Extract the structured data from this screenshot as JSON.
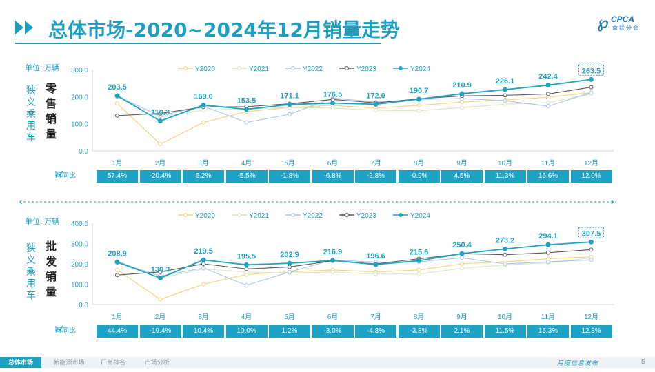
{
  "header": {
    "title": "总体市场-2020~2024年12月销量走势",
    "logo_text": "CPCA",
    "logo_sub": "乘联分会"
  },
  "colors": {
    "accent": "#1f9fbf",
    "Y2020": "#f7d27a",
    "Y2021": "#d9e6c6",
    "Y2022": "#a9c6e6",
    "Y2023": "#5a5a5a",
    "Y2024": "#1fa2c4"
  },
  "legend": [
    "Y2020",
    "Y2021",
    "Y2022",
    "Y2023",
    "Y2024"
  ],
  "months": [
    "1月",
    "2月",
    "3月",
    "4月",
    "5月",
    "6月",
    "7月",
    "8月",
    "9月",
    "10月",
    "11月",
    "12月"
  ],
  "mom_label": "月同比",
  "chart_data": [
    {
      "type": "line",
      "unit": "单位: 万辆",
      "side_label": "狭义乘用车",
      "big_label": "零售销量",
      "ylim": [
        0,
        300
      ],
      "yticks": [
        "0.0",
        "100.0",
        "200.0",
        "300.0"
      ],
      "x": [
        "1月",
        "2月",
        "3月",
        "4月",
        "5月",
        "6月",
        "7月",
        "8月",
        "9月",
        "10月",
        "11月",
        "12月"
      ],
      "series": [
        {
          "name": "Y2020",
          "values": [
            175,
            25,
            105,
            145,
            160,
            168,
            158,
            168,
            180,
            188,
            198,
            215
          ]
        },
        {
          "name": "Y2021",
          "values": [
            205,
            125,
            150,
            155,
            160,
            158,
            150,
            148,
            160,
            172,
            178,
            210
          ]
        },
        {
          "name": "Y2022",
          "values": [
            200,
            130,
            165,
            105,
            135,
            195,
            180,
            190,
            193,
            185,
            165,
            215
          ]
        },
        {
          "name": "Y2023",
          "values": [
            130,
            138,
            162,
            163,
            174,
            190,
            177,
            192,
            203,
            205,
            210,
            235
          ]
        },
        {
          "name": "Y2024",
          "values": [
            203.5,
            110.3,
            169.0,
            153.5,
            171.1,
            176.5,
            172.0,
            190.7,
            210.9,
            226.1,
            242.4,
            263.5
          ]
        }
      ],
      "data_labels": [
        "203.5",
        "110.3",
        "169.0",
        "153.5",
        "171.1",
        "176.5",
        "172.0",
        "190.7",
        "210.9",
        "226.1",
        "242.4",
        "263.5"
      ],
      "mom": [
        "57.4%",
        "-20.4%",
        "6.2%",
        "-5.5%",
        "-1.8%",
        "-6.8%",
        "-2.8%",
        "-0.9%",
        "4.5%",
        "11.3%",
        "16.6%",
        "12.0%"
      ]
    },
    {
      "type": "line",
      "unit": "单位: 万辆",
      "side_label": "狭义乘用车",
      "big_label": "批发销量",
      "ylim": [
        0,
        400
      ],
      "yticks": [
        "0.0",
        "100.0",
        "200.0",
        "300.0",
        "400.0"
      ],
      "x": [
        "1月",
        "2月",
        "3月",
        "4月",
        "5月",
        "6月",
        "7月",
        "8月",
        "9月",
        "10月",
        "11月",
        "12月"
      ],
      "series": [
        {
          "name": "Y2020",
          "values": [
            170,
            25,
            100,
            148,
            160,
            170,
            160,
            170,
            200,
            210,
            225,
            235
          ]
        },
        {
          "name": "Y2021",
          "values": [
            215,
            130,
            175,
            160,
            155,
            160,
            150,
            150,
            178,
            195,
            205,
            230
          ]
        },
        {
          "name": "Y2022",
          "values": [
            210,
            140,
            180,
            95,
            160,
            220,
            208,
            210,
            230,
            200,
            210,
            220
          ]
        },
        {
          "name": "Y2023",
          "values": [
            145,
            160,
            200,
            175,
            185,
            215,
            200,
            225,
            250,
            245,
            255,
            270
          ]
        },
        {
          "name": "Y2024",
          "values": [
            208.9,
            130.3,
            219.5,
            195.5,
            202.9,
            216.9,
            196.6,
            215.6,
            250.4,
            273.2,
            294.1,
            307.5
          ]
        }
      ],
      "data_labels": [
        "208.9",
        "130.3",
        "219.5",
        "195.5",
        "202.9",
        "216.9",
        "196.6",
        "215.6",
        "250.4",
        "273.2",
        "294.1",
        "307.5"
      ],
      "mom": [
        "44.4%",
        "-19.4%",
        "10.4%",
        "10.0%",
        "1.2%",
        "-3.0%",
        "-4.8%",
        "-3.8%",
        "2.1%",
        "11.5%",
        "15.3%",
        "12.3%"
      ]
    }
  ],
  "footer": {
    "tabs": [
      "总体市场",
      "新能源市场",
      "厂商排名",
      "市场分析"
    ],
    "release": "月度信息发布",
    "page": "5"
  }
}
